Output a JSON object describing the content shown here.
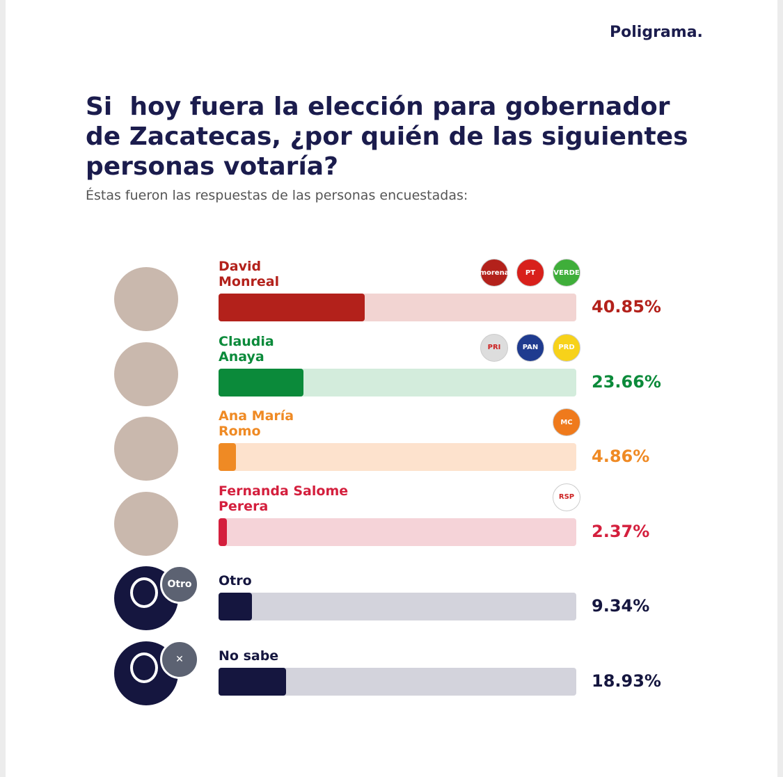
{
  "brand": "Poligrama.",
  "chart_data": {
    "type": "bar",
    "orientation": "horizontal",
    "title": "Si  hoy fuera la elección para gobernador de Zacatecas, ¿por quién de las siguientes personas votaría?",
    "subtitle": "Éstas fueron las respuestas de las personas encuestadas:",
    "categories": [
      "David\nMonreal",
      "Claudia\nAnaya",
      "Ana María\nRomo",
      "Fernanda Salome\nPerera",
      "Otro",
      "No sabe"
    ],
    "values": [
      40.85,
      23.66,
      4.86,
      2.37,
      9.34,
      18.93
    ],
    "value_labels": [
      "40.85%",
      "23.66%",
      "4.86%",
      "2.37%",
      "9.34%",
      "18.93%"
    ],
    "colors": [
      "#b3211b",
      "#0b8a3a",
      "#ef8a24",
      "#d41f3d",
      "#15163f",
      "#15163f"
    ],
    "track_colors": [
      "#f2d4d2",
      "#d3ecdc",
      "#fde2cd",
      "#f5d3d8",
      "#d3d3dc",
      "#d3d3dc"
    ],
    "logos": [
      [
        "morena",
        "PT",
        "VERDE"
      ],
      [
        "PRI",
        "PAN",
        "PRD"
      ],
      [
        "MC"
      ],
      [
        "RSP"
      ],
      [],
      []
    ],
    "logo_colors": [
      [
        "#b3211b",
        "#d8201b",
        "#3fae3a"
      ],
      [
        "#dddddd",
        "#1f3b8f",
        "#f7d21a"
      ],
      [
        "#ef7a1c"
      ],
      [
        "#ffffff"
      ],
      [],
      []
    ],
    "badges": [
      null,
      null,
      null,
      null,
      "Otro",
      "✕"
    ],
    "xlim": [
      0,
      100
    ]
  }
}
